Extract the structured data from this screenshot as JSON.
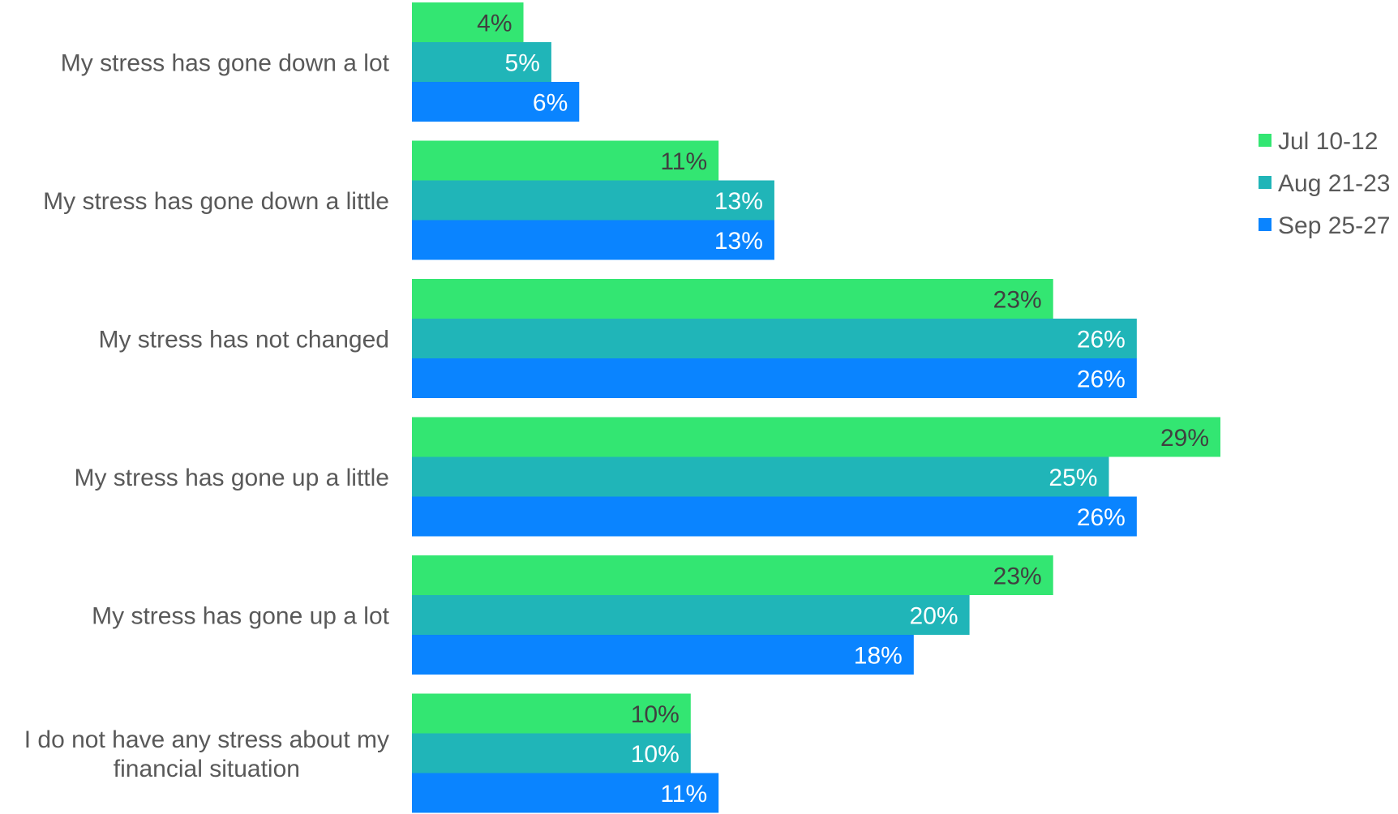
{
  "chart_data": {
    "type": "bar",
    "orientation": "horizontal",
    "categories": [
      "My stress has gone down a lot",
      "My stress has gone down a little",
      "My stress has not changed",
      "My stress has gone up a little",
      "My stress has gone up a lot",
      [
        "I do not have any stress about my",
        "financial situation"
      ]
    ],
    "series": [
      {
        "name": "Jul 10-12",
        "color": "#33E672",
        "label_color": "#404040",
        "values": [
          4,
          11,
          23,
          29,
          23,
          10
        ],
        "labels": [
          "4%",
          "11%",
          "23%",
          "29%",
          "23%",
          "10%"
        ]
      },
      {
        "name": "Aug 21-23",
        "color": "#20B5B8",
        "label_color": "#ffffff",
        "values": [
          5,
          13,
          26,
          25,
          20,
          10
        ],
        "labels": [
          "5%",
          "13%",
          "26%",
          "25%",
          "20%",
          "10%"
        ]
      },
      {
        "name": "Sep 25-27",
        "color": "#0A84FF",
        "label_color": "#ffffff",
        "values": [
          6,
          13,
          26,
          26,
          18,
          11
        ],
        "labels": [
          "6%",
          "13%",
          "26%",
          "26%",
          "18%",
          "11%"
        ]
      }
    ],
    "xlim": [
      0,
      29
    ],
    "grid": false,
    "legend_position": "right"
  }
}
